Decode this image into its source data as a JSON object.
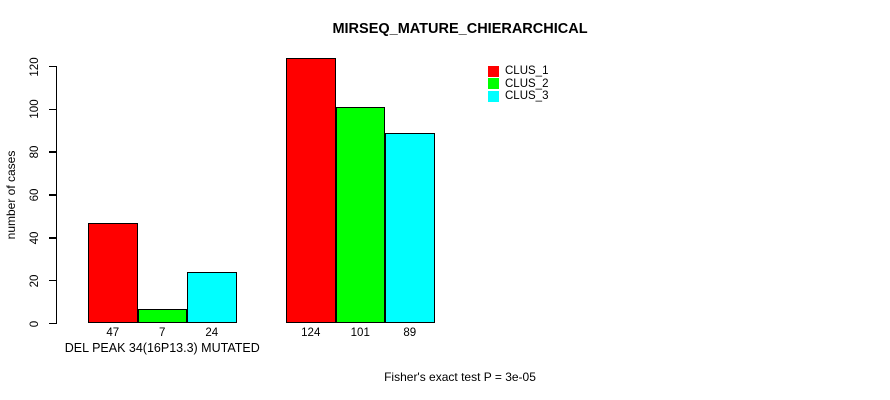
{
  "header": {
    "title": "MIRSEQ_MATURE_CHIERARCHICAL"
  },
  "footer": {
    "caption": "Fisher's exact test P = 3e-05"
  },
  "colors": {
    "clus_1": "#ff0000",
    "clus_2": "#00ff00",
    "clus_3": "#00ffff",
    "axis": "#000000",
    "background": "#ffffff"
  },
  "legend": {
    "position": "top-right",
    "items": [
      {
        "label": "CLUS_1",
        "color": "#ff0000"
      },
      {
        "label": "CLUS_2",
        "color": "#00ff00"
      },
      {
        "label": "CLUS_3",
        "color": "#00ffff"
      }
    ]
  },
  "chart_data": {
    "type": "bar",
    "title": "MIRSEQ_MATURE_CHIERARCHICAL",
    "ylabel": "number of cases",
    "xlabel": "",
    "annotation": "Fisher's exact test P = 3e-05",
    "ylim": [
      0,
      128
    ],
    "yticks": [
      0,
      20,
      40,
      60,
      80,
      100,
      120
    ],
    "grid": false,
    "bar_borders": true,
    "legend_position": "top-right",
    "groups": [
      {
        "label": "DEL PEAK 34(16P13.3) MUTATED",
        "values": [
          47,
          7,
          24
        ]
      },
      {
        "label": "",
        "values": [
          124,
          101,
          89
        ]
      }
    ],
    "series": [
      {
        "name": "CLUS_1",
        "color": "#ff0000",
        "values": [
          47,
          124
        ]
      },
      {
        "name": "CLUS_2",
        "color": "#00ff00",
        "values": [
          7,
          101
        ]
      },
      {
        "name": "CLUS_3",
        "color": "#00ffff",
        "values": [
          24,
          89
        ]
      }
    ],
    "bar_value_labels": [
      [
        "47",
        "7",
        "24"
      ],
      [
        "124",
        "101",
        "89"
      ]
    ]
  }
}
